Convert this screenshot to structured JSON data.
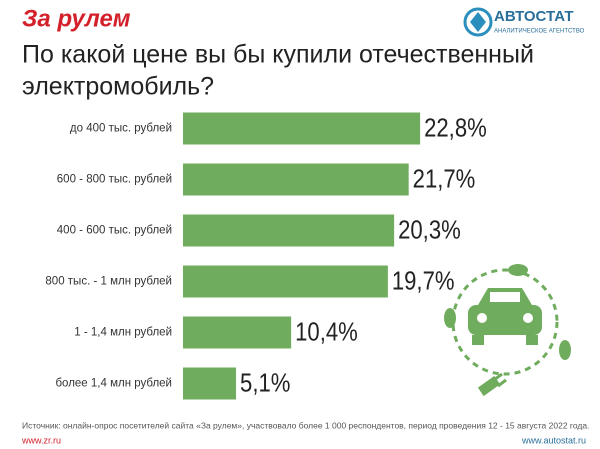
{
  "header": {
    "logo": "За рулем",
    "agency": "АВТОСТАТ",
    "agency_subtitle": "АНАЛИТИЧЕСКОЕ АГЕНТСТВО"
  },
  "chart_data": {
    "type": "bar",
    "orientation": "horizontal",
    "title": [
      "По какой цене вы бы купили отечественный",
      "электромобиль?"
    ],
    "categories": [
      "до 400 тыс. рублей",
      "600 - 800 тыс. рублей",
      "400 - 600 тыс. рублей",
      "800 тыс. - 1 млн рублей",
      "1 - 1,4 млн рублей",
      "более 1,4 млн рублей"
    ],
    "values": [
      22.8,
      21.7,
      20.3,
      19.7,
      10.4,
      5.1
    ],
    "value_labels": [
      "22,8%",
      "21,7%",
      "20,3%",
      "19,7%",
      "10,4%",
      "5,1%"
    ],
    "color": "#6fac5d"
  },
  "footer": {
    "source": "Источник: онлайн-опрос посетителей сайта «За рулем», участвовало более 1 000 респондентов, период проведения 12 - 15 августа 2022 года.",
    "left_url": "www.zr.ru",
    "right_url": "www.autostat.ru"
  }
}
